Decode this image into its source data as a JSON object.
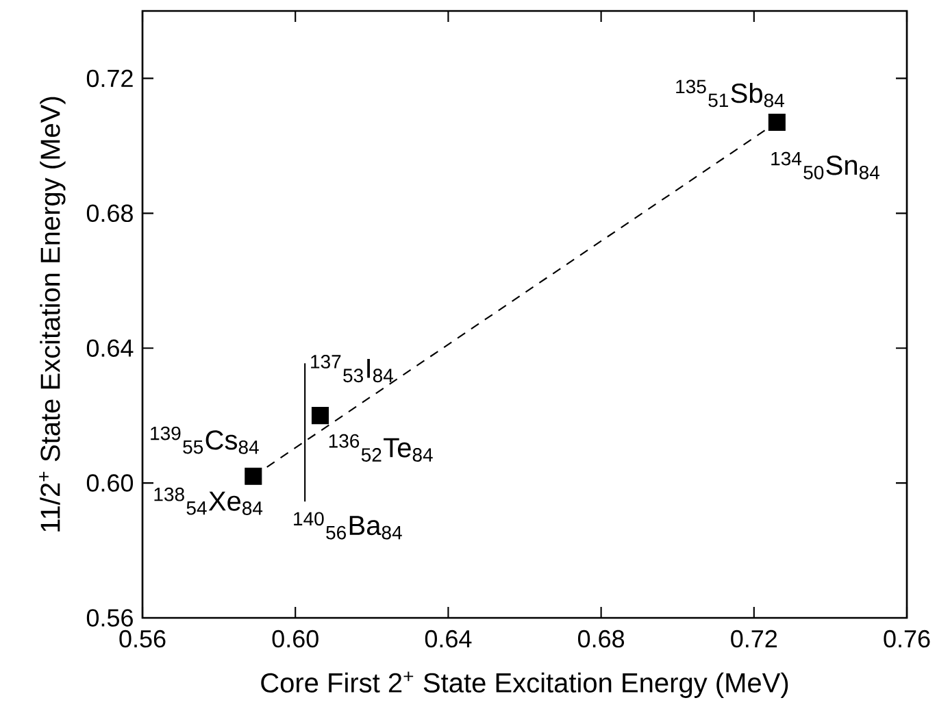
{
  "chart_data": {
    "type": "scatter",
    "xlabel": "Core First 2$^{+}$ State Excitation Energy (MeV)",
    "ylabel": "11/2$^{+}$ State Excitation Energy (MeV)",
    "xlim": [
      0.56,
      0.76
    ],
    "ylim": [
      0.56,
      0.74
    ],
    "xticks": [
      {
        "value": 0.56,
        "label": "0.56"
      },
      {
        "value": 0.6,
        "label": "0.60"
      },
      {
        "value": 0.64,
        "label": "0.64"
      },
      {
        "value": 0.68,
        "label": "0.68"
      },
      {
        "value": 0.72,
        "label": "0.72"
      },
      {
        "value": 0.76,
        "label": "0.76"
      }
    ],
    "yticks": [
      {
        "value": 0.56,
        "label": "0.56"
      },
      {
        "value": 0.6,
        "label": "0.60"
      },
      {
        "value": 0.64,
        "label": "0.64"
      },
      {
        "value": 0.68,
        "label": "0.68"
      },
      {
        "value": 0.72,
        "label": "0.72"
      }
    ],
    "grid": false,
    "series": [
      {
        "color": "#000000",
        "marker": "square",
        "x": [
          0.589,
          0.6065,
          0.726
        ],
        "values": [
          0.602,
          0.62,
          0.707
        ]
      },
      {
        "type": "line",
        "color": "#000000",
        "marker": "none",
        "line_style": "dashed",
        "x": [
          0.589,
          0.726
        ],
        "values": [
          0.602,
          0.707
        ]
      },
      {
        "type": "line",
        "color": "#000000",
        "marker": "none",
        "line_style": "solid",
        "x": [
          0.6025,
          0.6025
        ],
        "values": [
          0.5945,
          0.6355
        ]
      }
    ],
    "annotations": [
      {
        "text": "$^{135}$$_{51}$Sb$_{84}$",
        "x": 0.726,
        "y": 0.707
      },
      {
        "text": "$^{134}$$_{50}$Sn$_{84}$",
        "x": 0.726,
        "y": 0.707
      },
      {
        "text": "$^{139}$$_{55}$Cs$_{84}$",
        "x": 0.589,
        "y": 0.602
      },
      {
        "text": "$^{138}$$_{54}$Xe$_{84}$",
        "x": 0.589,
        "y": 0.602
      },
      {
        "text": "$^{137}$$_{53}$I$_{84}$",
        "x": 0.6065,
        "y": 0.62
      },
      {
        "text": "$^{136}$$_{52}$Te$_{84}$",
        "x": 0.6065,
        "y": 0.62
      },
      {
        "text": "$^{140}$$_{56}$Ba$_{84}$",
        "x": 0.6025,
        "y": 0.5945
      }
    ]
  }
}
